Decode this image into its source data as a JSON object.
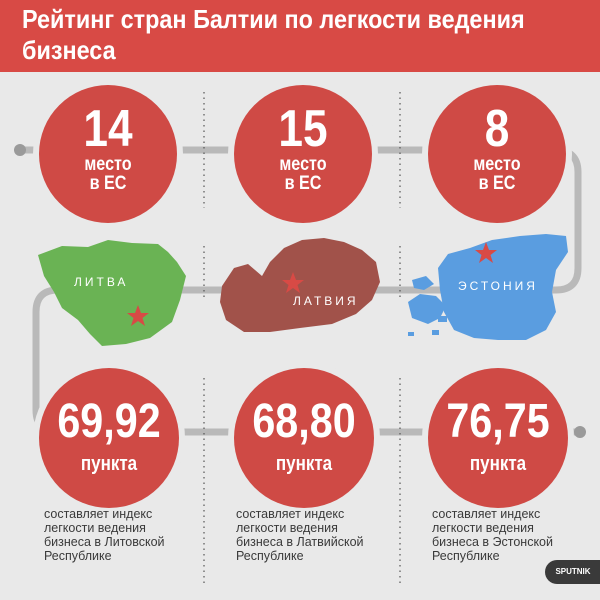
{
  "title": "Рейтинг стран Балтии по легкости ведения бизнеса",
  "colors": {
    "header": "#d84a45",
    "circle": "#cf4a45",
    "lithuania": "#6ab354",
    "latvia": "#a1524a",
    "estonia": "#5a9de0",
    "track": "#b9b9b9"
  },
  "countries": [
    {
      "map_label": "ЛИТВА",
      "rank": "14",
      "rank_text_1": "место",
      "rank_text_2": "в ЕС",
      "score": "69,92",
      "score_unit": "пункта",
      "note": "составляет индекс легкости ведения бизнеса в Литовской Республике"
    },
    {
      "map_label": "ЛАТВИЯ",
      "rank": "15",
      "rank_text_1": "место",
      "rank_text_2": "в ЕС",
      "score": "68,80",
      "score_unit": "пункта",
      "note": "составляет индекс легкости ведения бизнеса в Латвийской Республике"
    },
    {
      "map_label": "ЭСТОНИЯ",
      "rank": "8",
      "rank_text_1": "место",
      "rank_text_2": "в ЕС",
      "score": "76,75",
      "score_unit": "пункта",
      "note": "составляет индекс легкости ведения бизнеса в Эстонской Республике"
    }
  ],
  "logo": "SPUTNIK"
}
